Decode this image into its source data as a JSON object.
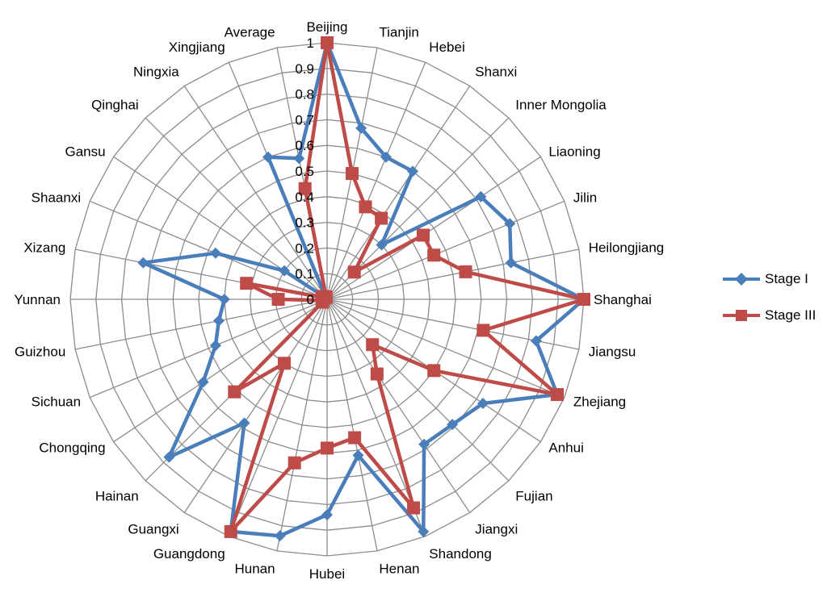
{
  "chart_data": {
    "type": "radar",
    "categories": [
      "Beijing",
      "Tianjin",
      "Hebei",
      "Shanxi",
      "Inner Mongolia",
      "Liaoning",
      "Jilin",
      "Heilongjiang",
      "Shanghai",
      "Jiangsu",
      "Zhejiang",
      "Anhui",
      "Fujian",
      "Jiangxi",
      "Shandong",
      "Henan",
      "Hubei",
      "Hunan",
      "Guangdong",
      "Guangxi",
      "Hainan",
      "Chongqing",
      "Sichuan",
      "Guizhou",
      "Yunnan",
      "Xizang",
      "Shaanxi",
      "Gansu",
      "Qinghai",
      "Ningxia",
      "Xingjiang",
      "Average"
    ],
    "ticks": [
      "0",
      "0.1",
      "0.2",
      "0.3",
      "0.4",
      "0.5",
      "0.6",
      "0.7",
      "0.8",
      "0.9",
      "1"
    ],
    "rmax": 1,
    "grid": true,
    "legend_position": "right",
    "series": [
      {
        "name": "Stage I",
        "color": "#4A7EBB",
        "marker": "diamond",
        "values": [
          1.0,
          0.68,
          0.6,
          0.6,
          0.3,
          0.72,
          0.77,
          0.73,
          1.0,
          0.83,
          0.97,
          0.73,
          0.69,
          0.68,
          0.98,
          0.62,
          0.84,
          0.94,
          0.98,
          0.58,
          0.87,
          0.58,
          0.47,
          0.43,
          0.4,
          0.73,
          0.47,
          0.2,
          0.01,
          0.01,
          0.6,
          0.56
        ]
      },
      {
        "name": "Stage III",
        "color": "#BE4B48",
        "marker": "square",
        "values": [
          1.0,
          0.5,
          0.39,
          0.38,
          0.15,
          0.45,
          0.45,
          0.55,
          1.0,
          0.62,
          0.97,
          0.5,
          0.25,
          0.35,
          0.88,
          0.55,
          0.58,
          0.65,
          0.98,
          0.3,
          0.51,
          0.02,
          0.02,
          0.02,
          0.19,
          0.32,
          0.02,
          0.02,
          0.01,
          0.01,
          0.01,
          0.44
        ]
      }
    ]
  }
}
